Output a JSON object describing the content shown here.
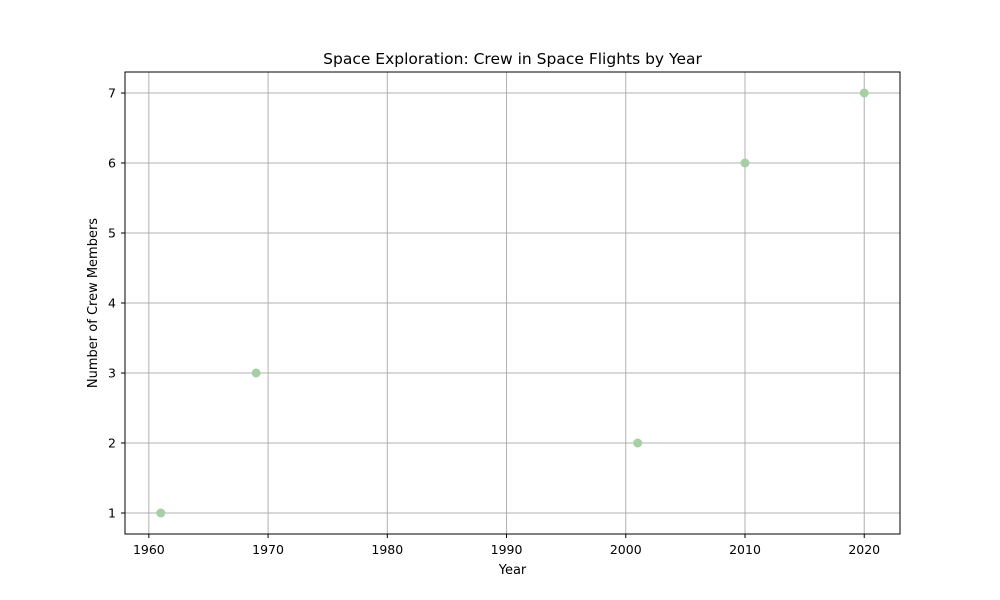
{
  "chart_data": {
    "type": "scatter",
    "title": "Space Exploration: Crew in Space Flights by Year",
    "xlabel": "Year",
    "ylabel": "Number of Crew Members",
    "xlim": [
      1958,
      2023
    ],
    "ylim": [
      0.7,
      7.3
    ],
    "x_ticks": [
      1960,
      1970,
      1980,
      1990,
      2000,
      2010,
      2020
    ],
    "y_ticks": [
      1,
      2,
      3,
      4,
      5,
      6,
      7
    ],
    "grid": true,
    "legend": "none",
    "point_color": "#a6cfa6",
    "points": [
      {
        "x": 1961,
        "y": 1
      },
      {
        "x": 1969,
        "y": 3
      },
      {
        "x": 2001,
        "y": 2
      },
      {
        "x": 2010,
        "y": 6
      },
      {
        "x": 2020,
        "y": 7
      }
    ]
  }
}
